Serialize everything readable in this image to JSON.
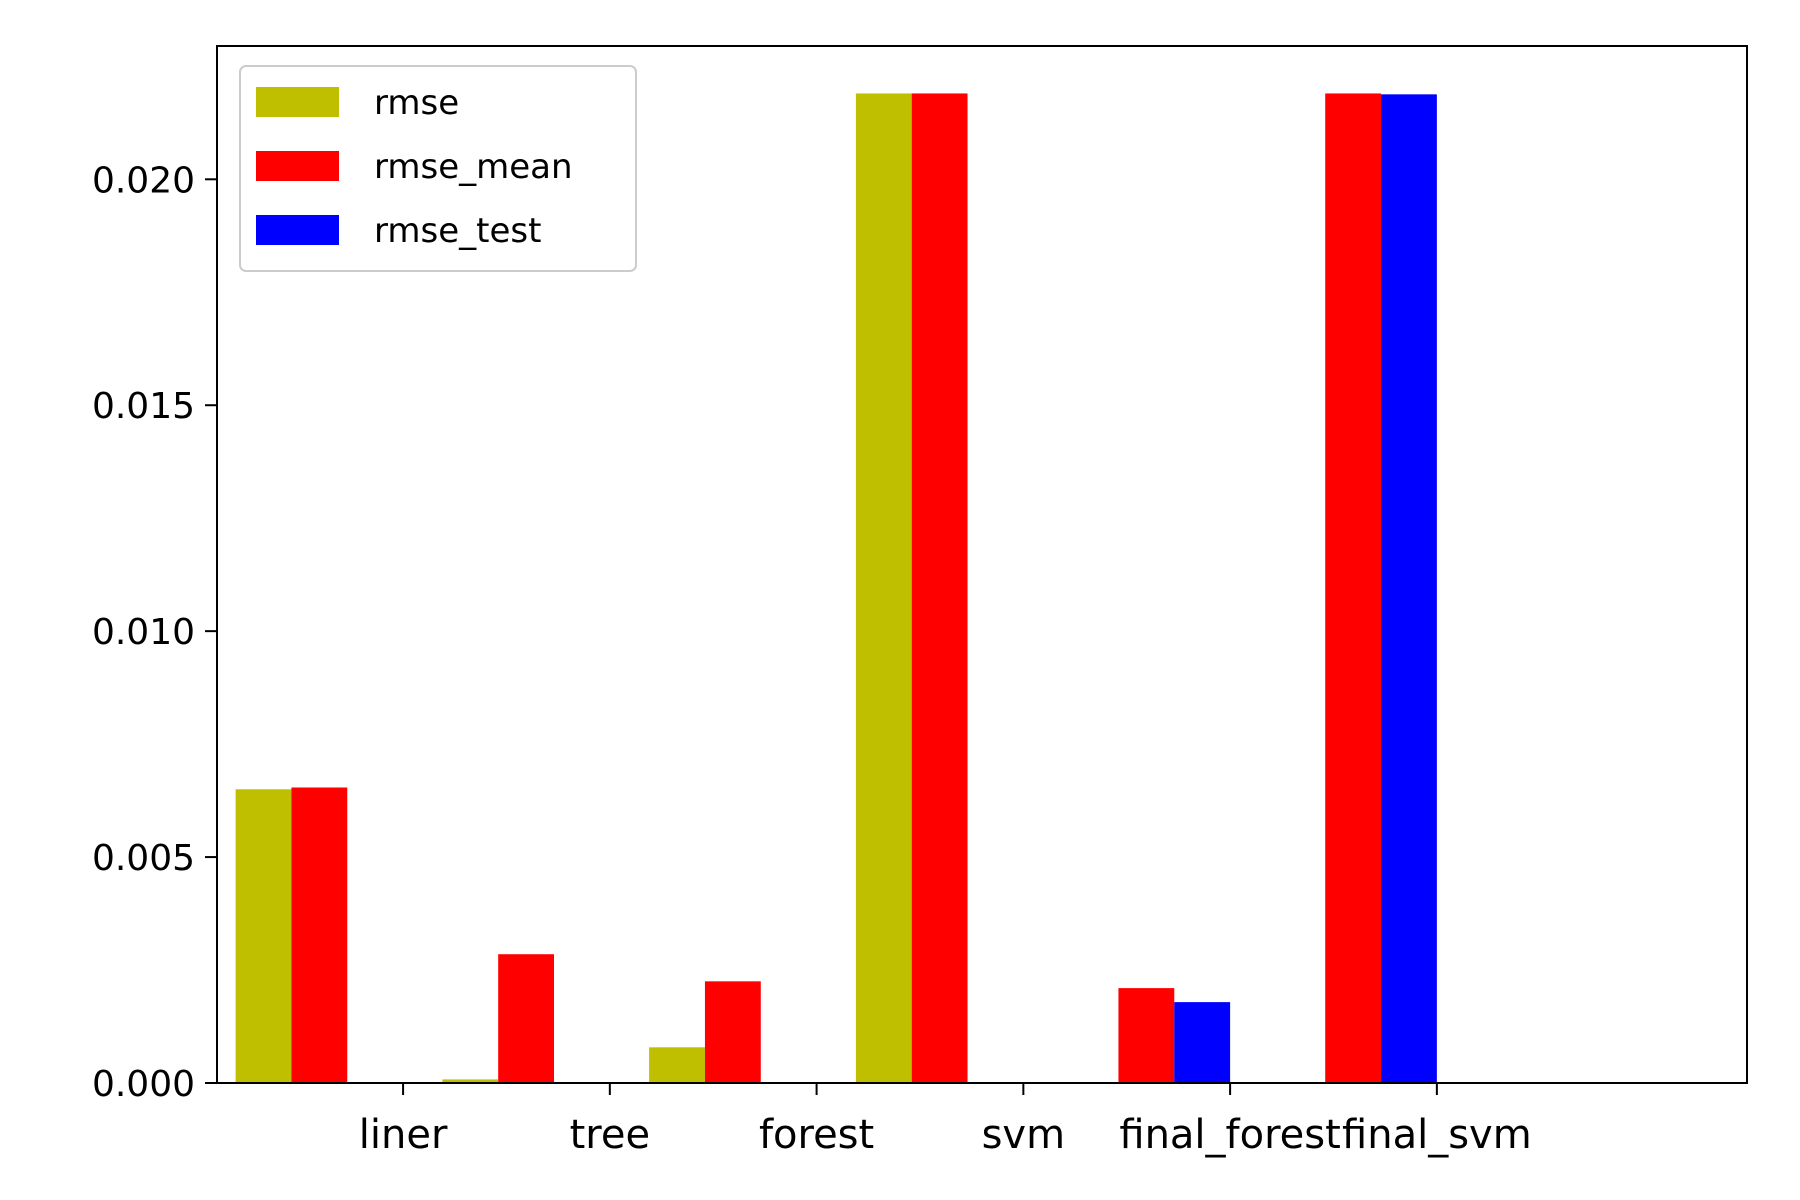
{
  "chart_data": {
    "type": "bar",
    "categories": [
      "liner",
      "tree",
      "forest",
      "svm",
      "final_forest",
      "final_svm"
    ],
    "series": [
      {
        "name": "rmse",
        "color": "#bfbf00",
        "values": [
          0.0065,
          8e-05,
          0.00079,
          0.0219,
          null,
          null
        ]
      },
      {
        "name": "rmse_mean",
        "color": "#ff0000",
        "values": [
          0.00654,
          0.00285,
          0.00225,
          0.0219,
          0.0021,
          0.0219
        ]
      },
      {
        "name": "rmse_test",
        "color": "#0000ff",
        "values": [
          null,
          null,
          null,
          null,
          0.00179,
          0.02188
        ]
      }
    ],
    "y_ticks": [
      "0.000",
      "0.005",
      "0.010",
      "0.015",
      "0.020"
    ],
    "y_tick_values": [
      0,
      0.005,
      0.01,
      0.015,
      0.02
    ],
    "ylim": [
      0,
      0.02295
    ],
    "legend_position": "upper-left",
    "grid": false
  }
}
